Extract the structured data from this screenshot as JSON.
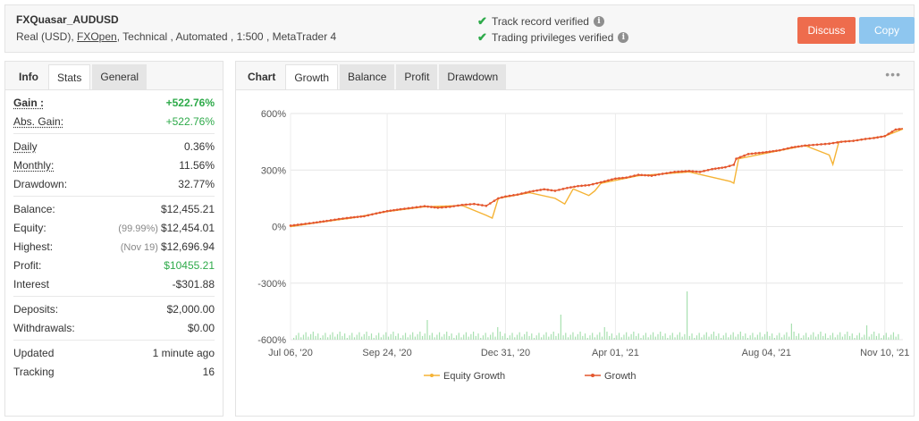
{
  "header": {
    "account_name": "FXQuasar_AUDUSD",
    "sub_pre": "Real (USD), ",
    "broker": "FXOpen",
    "sub_post": ", Technical , Automated , 1:500 , MetaTrader 4",
    "verify1": "Track record verified",
    "verify2": "Trading privileges verified",
    "discuss_label": "Discuss",
    "copy_label": "Copy"
  },
  "left_tabs": [
    "Info",
    "Stats",
    "General"
  ],
  "stats": {
    "gain_label": "Gain :",
    "gain_value": "+522.76%",
    "abs_gain_label": "Abs. Gain:",
    "abs_gain_value": "+522.76%",
    "daily_label": "Daily",
    "daily_value": "0.36%",
    "monthly_label": "Monthly:",
    "monthly_value": "11.56%",
    "drawdown_label": "Drawdown:",
    "drawdown_value": "32.77%",
    "balance_label": "Balance:",
    "balance_value": "$12,455.21",
    "equity_label": "Equity:",
    "equity_note": "(99.99%)",
    "equity_value": "$12,454.01",
    "highest_label": "Highest:",
    "highest_note": "(Nov 19)",
    "highest_value": "$12,696.94",
    "profit_label": "Profit:",
    "profit_value": "$10455.21",
    "interest_label": "Interest",
    "interest_value": "-$301.88",
    "deposits_label": "Deposits:",
    "deposits_value": "$2,000.00",
    "withdrawals_label": "Withdrawals:",
    "withdrawals_value": "$0.00",
    "updated_label": "Updated",
    "updated_value": "1 minute ago",
    "tracking_label": "Tracking",
    "tracking_value": "16"
  },
  "chart_tabs": [
    "Chart",
    "Growth",
    "Balance",
    "Profit",
    "Drawdown"
  ],
  "chart_menu_icon": "more-dots-icon",
  "colors": {
    "growth": "#e4572e",
    "equity": "#f5b335",
    "bars": "#a8e0b0",
    "discuss": "#ee6c4d",
    "copy": "#8ec6ef",
    "check": "#2eaa4a"
  },
  "chart_data": {
    "type": "line",
    "ylim": [
      -600,
      600
    ],
    "yticks": [
      "600%",
      "300%",
      "0%",
      "-300%",
      "-600%"
    ],
    "xticks": [
      "Jul 06, '20",
      "Sep 24, '20",
      "Dec 31, '20",
      "Apr 01, '21",
      "Aug 04, '21",
      "Nov 10, '21"
    ],
    "grid": true,
    "legend_position": "bottom",
    "series": [
      {
        "name": "Growth",
        "x": [
          "2020-07-06",
          "2020-07-15",
          "2020-07-25",
          "2020-08-05",
          "2020-08-15",
          "2020-08-25",
          "2020-09-05",
          "2020-09-15",
          "2020-09-24",
          "2020-10-05",
          "2020-10-15",
          "2020-10-25",
          "2020-11-05",
          "2020-11-15",
          "2020-11-25",
          "2020-12-05",
          "2020-12-15",
          "2020-12-25",
          "2020-12-31",
          "2021-01-10",
          "2021-01-20",
          "2021-02-01",
          "2021-02-10",
          "2021-02-20",
          "2021-03-01",
          "2021-03-10",
          "2021-03-20",
          "2021-04-01",
          "2021-04-10",
          "2021-04-20",
          "2021-05-01",
          "2021-05-10",
          "2021-05-20",
          "2021-06-01",
          "2021-06-10",
          "2021-06-20",
          "2021-07-01",
          "2021-07-08",
          "2021-07-10",
          "2021-07-20",
          "2021-08-04",
          "2021-08-15",
          "2021-08-25",
          "2021-09-05",
          "2021-09-15",
          "2021-09-25",
          "2021-10-05",
          "2021-10-15",
          "2021-10-25",
          "2021-11-01",
          "2021-11-10",
          "2021-11-19",
          "2021-11-25"
        ],
        "values": [
          5,
          12,
          20,
          30,
          40,
          48,
          55,
          70,
          82,
          92,
          100,
          108,
          100,
          105,
          115,
          120,
          110,
          150,
          160,
          170,
          185,
          198,
          190,
          205,
          215,
          220,
          235,
          255,
          260,
          275,
          270,
          280,
          290,
          295,
          290,
          305,
          315,
          328,
          360,
          385,
          395,
          405,
          420,
          430,
          435,
          440,
          450,
          455,
          465,
          470,
          480,
          515,
          520
        ]
      },
      {
        "name": "Equity Growth",
        "x": [
          "2020-07-06",
          "2020-07-25",
          "2020-08-25",
          "2020-09-24",
          "2020-10-25",
          "2020-11-25",
          "2020-12-15",
          "2020-12-20",
          "2020-12-25",
          "2021-01-20",
          "2021-02-10",
          "2021-02-18",
          "2021-02-25",
          "2021-03-10",
          "2021-03-15",
          "2021-03-20",
          "2021-04-20",
          "2021-06-01",
          "2021-07-05",
          "2021-07-08",
          "2021-07-12",
          "2021-08-04",
          "2021-09-05",
          "2021-09-25",
          "2021-09-28",
          "2021-10-03",
          "2021-10-15",
          "2021-11-10",
          "2021-11-25"
        ],
        "values": [
          0,
          18,
          45,
          80,
          105,
          112,
          60,
          45,
          150,
          180,
          150,
          120,
          200,
          165,
          190,
          230,
          270,
          290,
          240,
          230,
          360,
          390,
          430,
          380,
          330,
          450,
          455,
          480,
          518
        ]
      }
    ],
    "daily_bars_note": "small green volume bars along the bottom of the chart"
  }
}
